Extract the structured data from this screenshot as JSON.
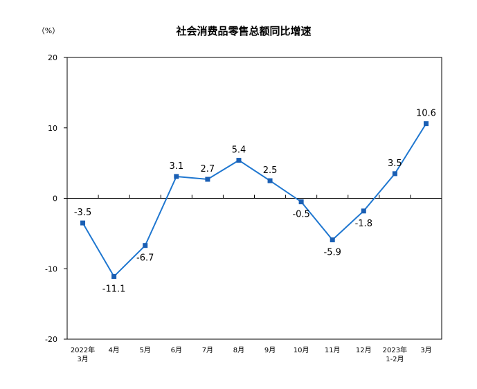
{
  "chart_data": {
    "type": "line",
    "title": "社会消费品零售总额同比增速",
    "ylabel": "（%）",
    "xlabel": "",
    "ylim": [
      -20,
      20
    ],
    "yticks": [
      "20",
      "10",
      "0",
      "-10",
      "-20"
    ],
    "categories": [
      [
        "2022年",
        "3月"
      ],
      [
        "4月"
      ],
      [
        "5月"
      ],
      [
        "6月"
      ],
      [
        "7月"
      ],
      [
        "8月"
      ],
      [
        "9月"
      ],
      [
        "10月"
      ],
      [
        "11月"
      ],
      [
        "12月"
      ],
      [
        "2023年",
        "1-2月"
      ],
      [
        "3月"
      ]
    ],
    "series": [
      {
        "values": [
          -3.5,
          -11.1,
          -6.7,
          3.1,
          2.7,
          5.4,
          2.5,
          -0.5,
          -5.9,
          -1.8,
          3.5,
          10.6
        ],
        "labels": [
          "-3.5",
          "-11.1",
          "-6.7",
          "3.1",
          "2.7",
          "5.4",
          "2.5",
          "-0.5",
          "-5.9",
          "-1.8",
          "3.5",
          "10.6"
        ],
        "label_side": [
          "above",
          "below",
          "below",
          "above",
          "above",
          "above",
          "above",
          "below",
          "below",
          "below",
          "above",
          "above"
        ],
        "color": "#1f77d0"
      }
    ],
    "grid": false,
    "legend": "none"
  }
}
